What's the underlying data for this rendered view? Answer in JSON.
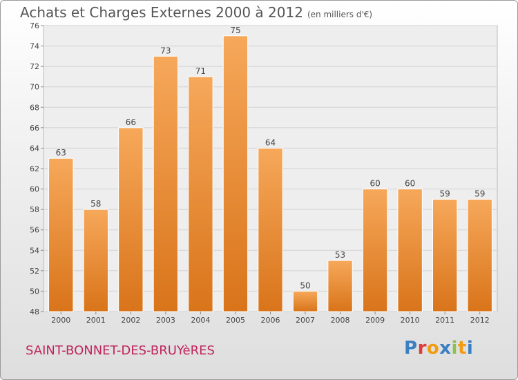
{
  "chart_data": {
    "type": "bar",
    "title": "Achats et Charges Externes 2000 à 2012",
    "subtitle": "(en milliers d'€)",
    "categories": [
      "2000",
      "2001",
      "2002",
      "2003",
      "2004",
      "2005",
      "2006",
      "2007",
      "2008",
      "2009",
      "2010",
      "2011",
      "2012"
    ],
    "values": [
      63,
      58,
      66,
      73,
      71,
      75,
      64,
      50,
      53,
      60,
      60,
      59,
      59
    ],
    "ylim": [
      48,
      76
    ],
    "yticks": [
      48,
      50,
      52,
      54,
      56,
      58,
      60,
      62,
      64,
      66,
      68,
      70,
      72,
      74,
      76
    ],
    "grid": true,
    "bar_color": "#f08a2c",
    "xlabel": "",
    "ylabel": ""
  },
  "footer": {
    "commune": "SAINT-BONNET-DES-BRUYèRES",
    "logo_text": "Proxiti",
    "logo_colors": [
      "#3a7fc1",
      "#e03a3a",
      "#f39c12",
      "#3a7fc1",
      "#8bc34a",
      "#f39c12",
      "#3a7fc1"
    ]
  }
}
